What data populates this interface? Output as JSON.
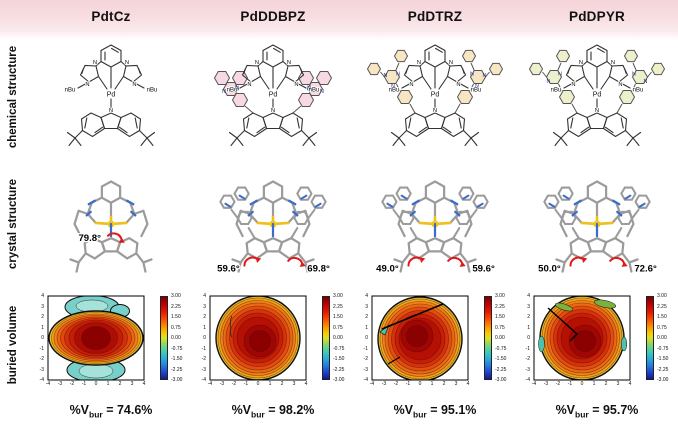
{
  "figure": {
    "columns": [
      "PdtCz",
      "PdDDBPZ",
      "PdDTRZ",
      "PdDPYR"
    ],
    "row_labels": [
      "chemical structure",
      "crystal structure",
      "buried volume"
    ]
  },
  "atom_labels": {
    "pd": "Pd",
    "n": "N",
    "nbu": "nBu"
  },
  "crystal_angles": {
    "c0": [
      "79.8°"
    ],
    "c1": [
      "59.6°",
      "69.8°"
    ],
    "c2": [
      "49.0°",
      "59.6°"
    ],
    "c3": [
      "50.0°",
      "72.6°"
    ]
  },
  "steric_map": {
    "x_ticks": [
      "-4",
      "-3",
      "-2",
      "-1",
      "0",
      "1",
      "2",
      "3",
      "4"
    ],
    "y_ticks": [
      "4",
      "3",
      "2",
      "1",
      "0",
      "-1",
      "-2",
      "-3",
      "-4"
    ],
    "colorbar_ticks": [
      "3.00",
      "2.25",
      "1.50",
      "0.75",
      "0.00",
      "-0.75",
      "-1.50",
      "-2.25",
      "-3.00"
    ]
  },
  "captions": [
    {
      "prefix": "%V",
      "sub": "bur",
      "value": " = 74.6%"
    },
    {
      "prefix": "%V",
      "sub": "bur",
      "value": " = 98.2%"
    },
    {
      "prefix": "%V",
      "sub": "bur",
      "value": " = 95.1%"
    },
    {
      "prefix": "%V",
      "sub": "bur",
      "value": " = 95.7%"
    }
  ],
  "chart_data": [
    {
      "type": "heatmap",
      "title": "PdtCz buried volume steric map",
      "x_range": [
        -4,
        4
      ],
      "y_range": [
        -4,
        4
      ],
      "z_range": [
        -3,
        3
      ],
      "colorbar_ticks": [
        3.0,
        2.25,
        1.5,
        0.75,
        0.0,
        -0.75,
        -1.5,
        -2.25,
        -3.0
      ],
      "percent_buried_volume": 74.6
    },
    {
      "type": "heatmap",
      "title": "PdDDBPZ buried volume steric map",
      "x_range": [
        -4,
        4
      ],
      "y_range": [
        -4,
        4
      ],
      "z_range": [
        -3,
        3
      ],
      "colorbar_ticks": [
        3.0,
        2.25,
        1.5,
        0.75,
        0.0,
        -0.75,
        -1.5,
        -2.25,
        -3.0
      ],
      "percent_buried_volume": 98.2
    },
    {
      "type": "heatmap",
      "title": "PdDTRZ buried volume steric map",
      "x_range": [
        -4,
        4
      ],
      "y_range": [
        -4,
        4
      ],
      "z_range": [
        -3,
        3
      ],
      "colorbar_ticks": [
        3.0,
        2.25,
        1.5,
        0.75,
        0.0,
        -0.75,
        -1.5,
        -2.25,
        -3.0
      ],
      "percent_buried_volume": 95.1
    },
    {
      "type": "heatmap",
      "title": "PdDPYR buried volume steric map",
      "x_range": [
        -4,
        4
      ],
      "y_range": [
        -4,
        4
      ],
      "z_range": [
        -3,
        3
      ],
      "colorbar_ticks": [
        3.0,
        2.25,
        1.5,
        0.75,
        0.0,
        -0.75,
        -1.5,
        -2.25,
        -3.0
      ],
      "percent_buried_volume": 95.7
    }
  ],
  "colors": {
    "header_pink": "#f5d5da",
    "ddbpz_highlight": "#f8d9e3",
    "dtrz_highlight": "#f7e5c4",
    "dpyr_highlight": "#eef0cc",
    "pd_yellow": "#f2c71d",
    "nitrogen_blue": "#3a6cc8",
    "angle_arrow_red": "#e01818"
  }
}
